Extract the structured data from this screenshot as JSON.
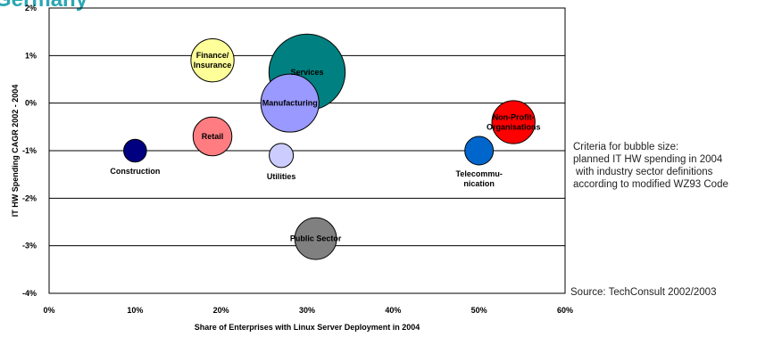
{
  "title": "Germany",
  "chart_data": {
    "type": "bubble",
    "xlabel": "Share of Enterprises with Linux Server Deployment in 2004",
    "ylabel": "IT HW Spending CAGR 2002 - 2004",
    "xlim": [
      0,
      60
    ],
    "ylim": [
      -4,
      2
    ],
    "x_ticks": [
      "0%",
      "10%",
      "20%",
      "30%",
      "40%",
      "50%",
      "60%"
    ],
    "y_ticks": [
      "2%",
      "1%",
      "0%",
      "-1%",
      "-2%",
      "-3%",
      "-4%"
    ],
    "grid": "horizontal",
    "points": [
      {
        "label": "Finance/ Insurance",
        "x": 19,
        "y": 0.9,
        "size": 3.2,
        "color": "#ffff99"
      },
      {
        "label": "Services",
        "x": 30,
        "y": 0.65,
        "size": 10.0,
        "color": "#008080"
      },
      {
        "label": "Manufacturing",
        "x": 28,
        "y": 0.0,
        "size": 5.8,
        "color": "#9999ff"
      },
      {
        "label": "Non-Profit-Organisations",
        "x": 54,
        "y": -0.4,
        "size": 3.2,
        "color": "#ff0000"
      },
      {
        "label": "Retail",
        "x": 19,
        "y": -0.7,
        "size": 2.6,
        "color": "#ff7c80"
      },
      {
        "label": "Construction",
        "x": 10,
        "y": -1.0,
        "size": 0.9,
        "color": "#000080"
      },
      {
        "label": "Utilities",
        "x": 27,
        "y": -1.1,
        "size": 1.0,
        "color": "#ccccff"
      },
      {
        "label": "Telecommu-nication",
        "x": 50,
        "y": -1.0,
        "size": 1.4,
        "color": "#0066cc"
      },
      {
        "label": "Public Sector",
        "x": 31,
        "y": -2.85,
        "size": 3.0,
        "color": "#808080"
      }
    ]
  },
  "size_note": {
    "line1": "Criteria for bubble size:",
    "line2": "planned IT HW spending in 2004",
    "line3": "with industry sector definitions",
    "line4": "according to modified WZ93 Code"
  },
  "source": "Source: TechConsult  2002/2003"
}
